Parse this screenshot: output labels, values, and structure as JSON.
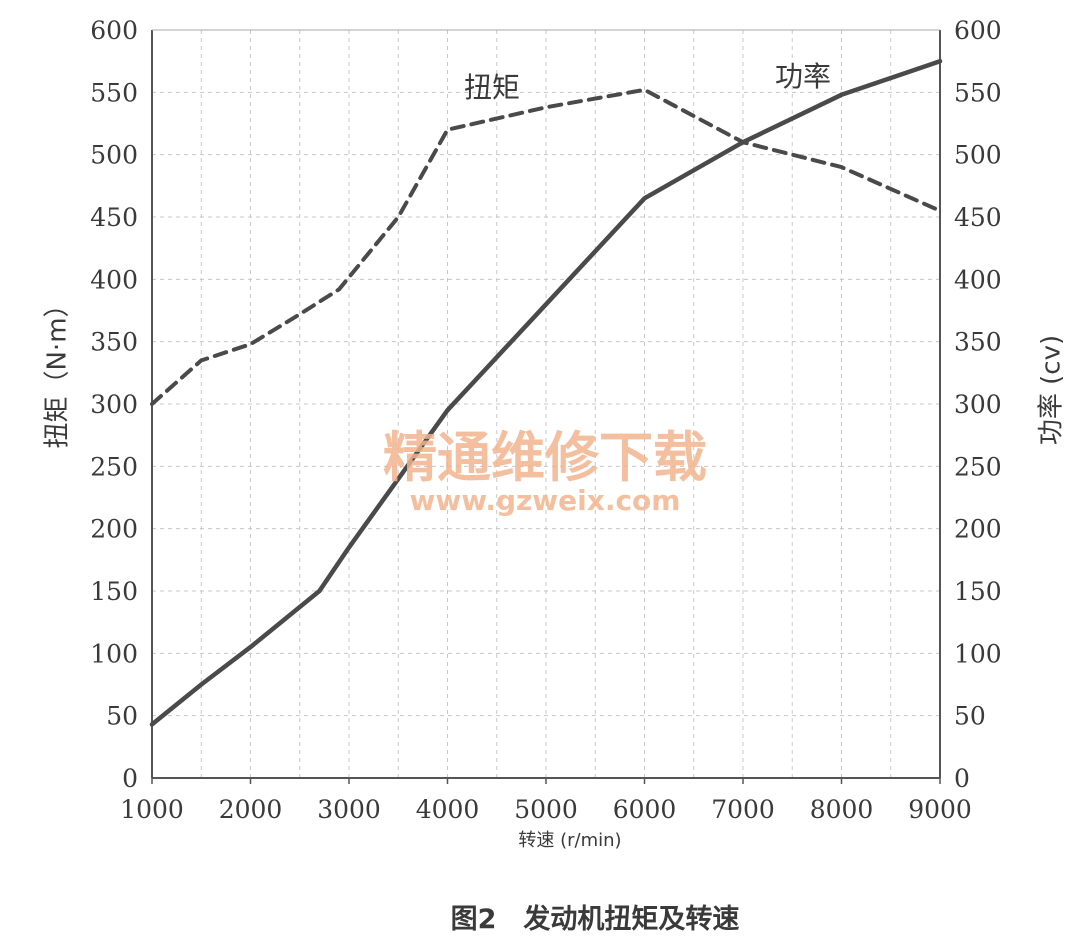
{
  "chart_data": {
    "type": "line",
    "caption": "图2　发动机扭矩及转速",
    "xlabel": "转速 (r/min)",
    "ylabel_left": "扭矩（N·m）",
    "ylabel_right": "功率 (cv)",
    "xlim": [
      1000,
      9000
    ],
    "ylim_left": [
      0,
      600
    ],
    "ylim_right": [
      0,
      600
    ],
    "x_ticks": [
      "1000",
      "2000",
      "3000",
      "4000",
      "5000",
      "6000",
      "7000",
      "8000",
      "9000"
    ],
    "y_ticks_left": [
      "0",
      "50",
      "100",
      "150",
      "200",
      "250",
      "300",
      "350",
      "400",
      "450",
      "500",
      "550",
      "600"
    ],
    "y_ticks_right": [
      "0",
      "50",
      "100",
      "150",
      "200",
      "250",
      "300",
      "350",
      "400",
      "450",
      "500",
      "550",
      "600"
    ],
    "grid": true,
    "series": [
      {
        "name": "扭矩",
        "axis": "left",
        "style": "dashed",
        "x": [
          1000,
          1500,
          2000,
          2500,
          2900,
          3500,
          4000,
          5000,
          6000,
          7000,
          8000,
          9000
        ],
        "values": [
          300,
          335,
          348,
          372,
          392,
          450,
          520,
          538,
          552,
          510,
          490,
          455
        ]
      },
      {
        "name": "功率",
        "axis": "right",
        "style": "solid",
        "x": [
          1000,
          1500,
          2000,
          2700,
          3000,
          3500,
          4000,
          5000,
          6000,
          7000,
          8000,
          9000
        ],
        "values": [
          43,
          75,
          105,
          150,
          185,
          240,
          295,
          380,
          465,
          510,
          548,
          575
        ]
      }
    ],
    "watermark": {
      "line1": "精通维修下载",
      "line2": "www.gzweix.com"
    }
  }
}
